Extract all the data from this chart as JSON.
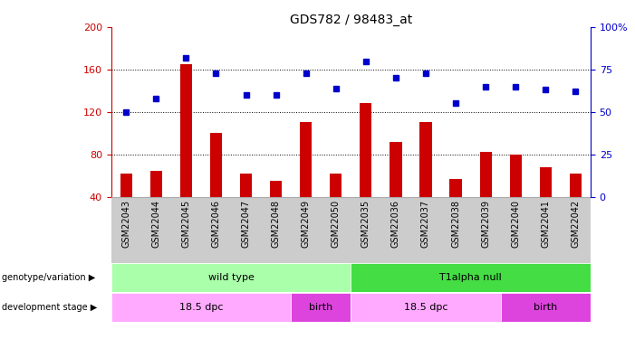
{
  "title": "GDS782 / 98483_at",
  "samples": [
    "GSM22043",
    "GSM22044",
    "GSM22045",
    "GSM22046",
    "GSM22047",
    "GSM22048",
    "GSM22049",
    "GSM22050",
    "GSM22035",
    "GSM22036",
    "GSM22037",
    "GSM22038",
    "GSM22039",
    "GSM22040",
    "GSM22041",
    "GSM22042"
  ],
  "counts": [
    62,
    64,
    165,
    100,
    62,
    55,
    110,
    62,
    128,
    92,
    110,
    57,
    82,
    80,
    68,
    62
  ],
  "percentiles": [
    50,
    58,
    82,
    73,
    60,
    60,
    73,
    64,
    80,
    70,
    73,
    55,
    65,
    65,
    63,
    62
  ],
  "ylim_left": [
    40,
    200
  ],
  "ylim_right": [
    0,
    100
  ],
  "yticks_left": [
    40,
    80,
    120,
    160,
    200
  ],
  "yticks_right": [
    0,
    25,
    50,
    75,
    100
  ],
  "bar_color": "#cc0000",
  "dot_color": "#0000cc",
  "bg_color": "#ffffff",
  "tick_bg_color": "#cccccc",
  "genotype_groups": [
    {
      "label": "wild type",
      "start": 0,
      "end": 8,
      "color": "#aaffaa"
    },
    {
      "label": "T1alpha null",
      "start": 8,
      "end": 16,
      "color": "#44dd44"
    }
  ],
  "stage_groups": [
    {
      "label": "18.5 dpc",
      "start": 0,
      "end": 6,
      "color": "#ffaaff"
    },
    {
      "label": "birth",
      "start": 6,
      "end": 8,
      "color": "#dd44dd"
    },
    {
      "label": "18.5 dpc",
      "start": 8,
      "end": 13,
      "color": "#ffaaff"
    },
    {
      "label": "birth",
      "start": 13,
      "end": 16,
      "color": "#dd44dd"
    }
  ],
  "left_label_color": "#cc0000",
  "right_label_color": "#0000cc",
  "geno_label": "genotype/variation",
  "stage_label": "development stage"
}
